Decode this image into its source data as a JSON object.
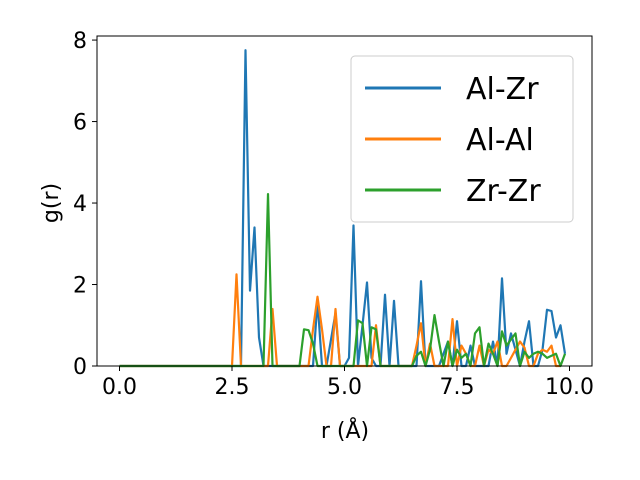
{
  "chart_data": {
    "type": "line",
    "title": "",
    "xlabel": "r (Å)",
    "ylabel": "g(r)",
    "xlim": [
      -0.5,
      10.5
    ],
    "ylim": [
      0,
      8.1
    ],
    "xticks": [
      "0.0",
      "2.5",
      "5.0",
      "7.5",
      "10.0"
    ],
    "xtick_values": [
      0,
      2.5,
      5,
      7.5,
      10
    ],
    "yticks": [
      "0",
      "2",
      "4",
      "6",
      "8"
    ],
    "ytick_values": [
      0,
      2,
      4,
      6,
      8
    ],
    "grid": false,
    "legend_position": "top-right",
    "series": [
      {
        "name": "Al-Zr",
        "color": "#1f77b4",
        "x": [
          0.0,
          2.6,
          2.7,
          2.8,
          2.9,
          3.0,
          3.1,
          3.2,
          4.3,
          4.4,
          4.5,
          4.6,
          4.8,
          4.9,
          5.0,
          5.1,
          5.2,
          5.3,
          5.4,
          5.5,
          5.6,
          5.7,
          5.8,
          5.9,
          6.0,
          6.1,
          6.2,
          6.3,
          6.4,
          6.5,
          6.6,
          6.7,
          6.8,
          6.9,
          7.0,
          7.1,
          7.2,
          7.3,
          7.4,
          7.5,
          7.6,
          7.7,
          7.8,
          7.9,
          8.0,
          8.1,
          8.2,
          8.3,
          8.4,
          8.5,
          8.6,
          8.7,
          8.8,
          8.9,
          9.0,
          9.1,
          9.2,
          9.3,
          9.4,
          9.5,
          9.6,
          9.7,
          9.8,
          9.9
        ],
        "values": [
          0,
          0,
          0,
          7.75,
          1.85,
          3.4,
          0.7,
          0,
          0,
          1.6,
          0,
          0,
          1.3,
          0,
          0,
          0.2,
          3.45,
          0,
          1.0,
          2.05,
          0.2,
          0,
          0,
          1.75,
          0,
          1.6,
          0,
          0,
          0,
          0,
          0,
          2.08,
          0,
          0,
          0,
          0,
          0.3,
          0.6,
          0,
          1.1,
          0,
          0,
          0.5,
          0,
          0,
          0,
          0,
          0.6,
          0,
          2.15,
          0.3,
          0.8,
          0.4,
          0,
          0.6,
          1.1,
          0,
          0,
          0.4,
          1.38,
          1.35,
          0.7,
          1.0,
          0.3
        ]
      },
      {
        "name": "Al-Al",
        "color": "#ff7f0e",
        "x": [
          0.0,
          2.5,
          2.6,
          2.7,
          3.3,
          3.4,
          3.5,
          4.2,
          4.3,
          4.4,
          4.5,
          4.6,
          4.7,
          4.8,
          4.9,
          5.0,
          5.6,
          5.7,
          5.8,
          6.5,
          6.6,
          6.7,
          6.8,
          6.9,
          7.0,
          7.1,
          7.2,
          7.3,
          7.4,
          7.5,
          7.6,
          7.7,
          7.8,
          7.9,
          8.0,
          8.1,
          8.2,
          8.3,
          8.4,
          8.5,
          8.6,
          8.7,
          8.8,
          8.9,
          9.0,
          9.1,
          9.2,
          9.3,
          9.4,
          9.5,
          9.6,
          9.7,
          9.8
        ],
        "values": [
          0,
          0,
          2.25,
          0,
          0,
          1.4,
          0,
          0,
          0.9,
          1.7,
          0.9,
          0,
          0,
          1.4,
          0,
          0,
          0,
          1.0,
          0,
          0,
          0.5,
          1.05,
          0,
          0.55,
          0,
          0,
          0,
          0,
          1.15,
          0,
          0.5,
          0.3,
          0,
          0,
          0.5,
          0,
          0.4,
          0.3,
          0.6,
          0,
          0,
          0.2,
          0.4,
          0.6,
          0.45,
          0,
          0,
          0.3,
          0.4,
          0.35,
          0.5,
          0,
          0
        ]
      },
      {
        "name": "Zr-Zr",
        "color": "#2ca02c",
        "x": [
          0.0,
          3.2,
          3.3,
          3.4,
          4.0,
          4.1,
          4.2,
          4.3,
          4.4,
          5.2,
          5.3,
          5.4,
          5.5,
          5.6,
          5.7,
          5.8,
          6.5,
          6.6,
          6.7,
          6.8,
          6.9,
          7.0,
          7.1,
          7.2,
          7.3,
          7.4,
          7.5,
          7.6,
          7.7,
          7.8,
          7.9,
          8.0,
          8.1,
          8.2,
          8.3,
          8.4,
          8.5,
          8.6,
          8.7,
          8.8,
          8.9,
          9.0,
          9.1,
          9.2,
          9.3,
          9.4,
          9.5,
          9.6,
          9.7,
          9.8,
          9.9
        ],
        "values": [
          0,
          0,
          4.22,
          0,
          0,
          0.9,
          0.88,
          0.55,
          0,
          0,
          1.12,
          1.05,
          0,
          0.95,
          0.9,
          0,
          0,
          0.25,
          0.35,
          0,
          0.4,
          1.25,
          0.6,
          0,
          0.6,
          0,
          0.4,
          0.2,
          0.3,
          0,
          0.8,
          0.95,
          0,
          0.55,
          0.3,
          0,
          0.85,
          0.5,
          0.65,
          0.8,
          0,
          0.35,
          0.2,
          0.3,
          0.35,
          0.3,
          0.2,
          0.25,
          0.3,
          0,
          0.3
        ]
      }
    ]
  }
}
